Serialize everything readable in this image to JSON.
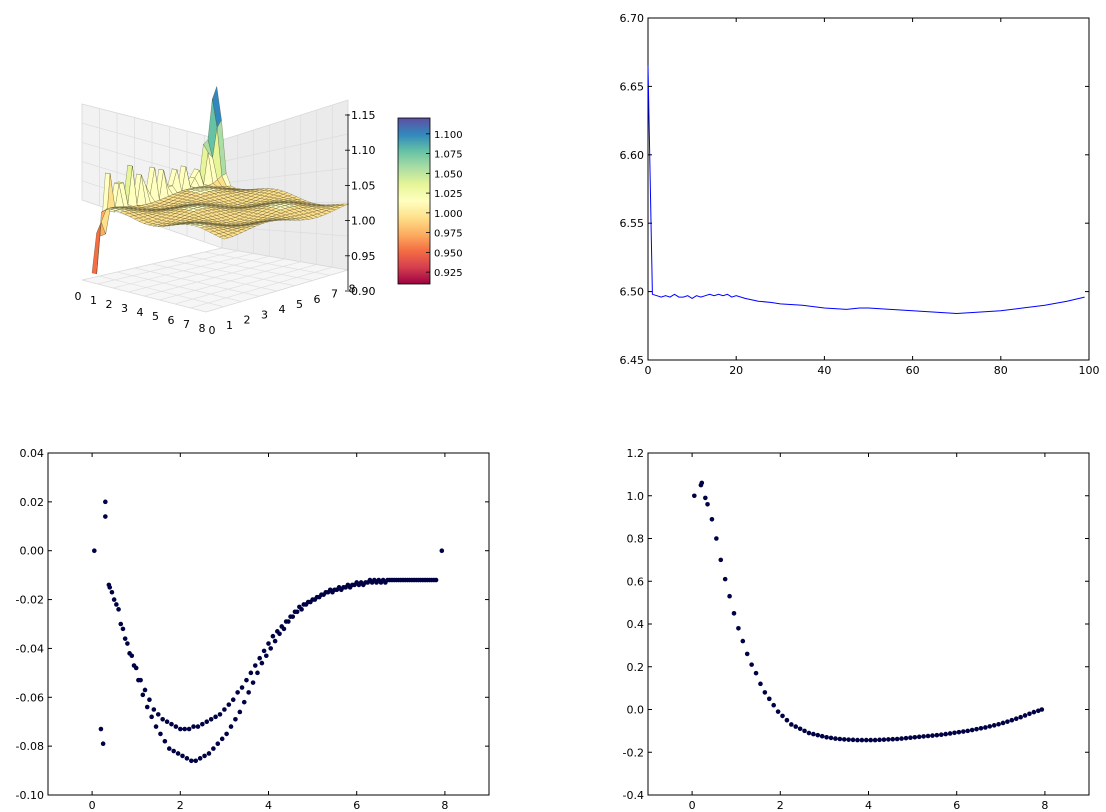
{
  "chart_data": [
    {
      "type": "surface3d",
      "description_of_surface": "",
      "x_ticks": [
        "0",
        "1",
        "2",
        "3",
        "4",
        "5",
        "6",
        "7",
        "8"
      ],
      "y_ticks": [
        "0",
        "1",
        "2",
        "3",
        "4",
        "5",
        "6",
        "7",
        "8"
      ],
      "z_ticks": [
        "0.90",
        "0.95",
        "1.00",
        "1.05",
        "1.10",
        "1.15"
      ],
      "xlim": [
        0,
        8
      ],
      "ylim": [
        0,
        8
      ],
      "zlim": [
        0.9,
        1.15
      ],
      "colormap": "Spectral",
      "colorbar": {
        "range": [
          0.91,
          1.12
        ],
        "ticks": [
          "0.925",
          "0.950",
          "0.975",
          "1.000",
          "1.025",
          "1.050",
          "1.075",
          "1.100"
        ],
        "colors": [
          "#9e0142",
          "#d53e4f",
          "#f46d43",
          "#fdae61",
          "#fee08b",
          "#ffffbf",
          "#e6f598",
          "#abdda4",
          "#66c2a5",
          "#3288bd",
          "#5e4fa2"
        ]
      },
      "grid": true
    },
    {
      "type": "line",
      "xlim": [
        0,
        100
      ],
      "ylim": [
        6.45,
        6.7
      ],
      "x_ticks": [
        "0",
        "20",
        "40",
        "60",
        "80",
        "100"
      ],
      "y_ticks": [
        "6.45",
        "6.50",
        "6.55",
        "6.60",
        "6.65",
        "6.70"
      ],
      "color": "#0000ff",
      "x": [
        0,
        1,
        2,
        3,
        4,
        5,
        6,
        7,
        8,
        9,
        10,
        11,
        12,
        13,
        14,
        15,
        16,
        17,
        18,
        19,
        20,
        22,
        25,
        28,
        30,
        35,
        40,
        45,
        48,
        50,
        55,
        60,
        65,
        70,
        75,
        80,
        85,
        90,
        95,
        99
      ],
      "y": [
        6.665,
        6.498,
        6.497,
        6.496,
        6.497,
        6.496,
        6.498,
        6.496,
        6.496,
        6.497,
        6.495,
        6.497,
        6.496,
        6.497,
        6.498,
        6.497,
        6.498,
        6.497,
        6.498,
        6.496,
        6.497,
        6.495,
        6.493,
        6.492,
        6.491,
        6.49,
        6.488,
        6.487,
        6.488,
        6.488,
        6.487,
        6.486,
        6.485,
        6.484,
        6.485,
        6.486,
        6.488,
        6.49,
        6.493,
        6.496
      ]
    },
    {
      "type": "scatter",
      "xlim": [
        -1,
        9
      ],
      "ylim": [
        -0.1,
        0.04
      ],
      "x_ticks": [
        "0",
        "2",
        "4",
        "6",
        "8"
      ],
      "y_ticks": [
        "-0.10",
        "-0.08",
        "-0.06",
        "-0.04",
        "-0.02",
        "0.00",
        "0.02",
        "0.04"
      ],
      "color": "#000044",
      "series": [
        {
          "x": [
            0.05,
            0.3,
            0.38,
            0.45,
            0.55,
            0.65,
            0.75,
            0.85,
            0.95,
            1.05,
            1.15,
            1.25,
            1.35,
            1.45,
            1.55,
            1.65,
            1.75,
            1.85,
            1.95,
            2.05,
            2.15,
            2.25,
            2.35,
            2.45,
            2.55,
            2.65,
            2.75,
            2.85,
            2.95,
            3.05,
            3.15,
            3.25,
            3.35,
            3.45,
            3.55,
            3.65,
            3.75,
            3.85,
            3.95,
            4.05,
            4.15,
            4.25,
            4.35,
            4.45,
            4.55,
            4.65,
            4.75,
            4.85,
            4.95,
            5.05,
            5.15,
            5.25,
            5.35,
            5.45,
            5.55,
            5.65,
            5.75,
            5.85,
            5.95,
            6.05,
            6.15,
            6.25,
            6.35,
            6.45,
            6.55,
            6.65,
            6.75,
            6.85,
            6.95,
            7.05,
            7.15,
            7.25,
            7.35,
            7.45,
            7.55,
            7.65,
            7.75,
            7.93
          ],
          "y": [
            0.0,
            0.014,
            -0.014,
            -0.017,
            -0.022,
            -0.03,
            -0.036,
            -0.042,
            -0.047,
            -0.053,
            -0.059,
            -0.064,
            -0.068,
            -0.072,
            -0.075,
            -0.078,
            -0.081,
            -0.082,
            -0.083,
            -0.084,
            -0.085,
            -0.086,
            -0.086,
            -0.085,
            -0.084,
            -0.083,
            -0.081,
            -0.079,
            -0.077,
            -0.075,
            -0.072,
            -0.069,
            -0.066,
            -0.062,
            -0.058,
            -0.054,
            -0.05,
            -0.046,
            -0.043,
            -0.04,
            -0.037,
            -0.034,
            -0.032,
            -0.029,
            -0.027,
            -0.025,
            -0.024,
            -0.022,
            -0.021,
            -0.02,
            -0.019,
            -0.018,
            -0.017,
            -0.017,
            -0.016,
            -0.016,
            -0.015,
            -0.015,
            -0.014,
            -0.014,
            -0.014,
            -0.013,
            -0.013,
            -0.013,
            -0.013,
            -0.013,
            -0.012,
            -0.012,
            -0.012,
            -0.012,
            -0.012,
            -0.012,
            -0.012,
            -0.012,
            -0.012,
            -0.012,
            -0.012,
            0.0
          ]
        },
        {
          "x": [
            0.2,
            0.25,
            0.3,
            0.4,
            0.5,
            0.6,
            0.7,
            0.8,
            0.9,
            1.0,
            1.1,
            1.2,
            1.3,
            1.4,
            1.5,
            1.6,
            1.7,
            1.8,
            1.9,
            2.0,
            2.1,
            2.2,
            2.3,
            2.4,
            2.5,
            2.6,
            2.7,
            2.8,
            2.9,
            3.0,
            3.1,
            3.2,
            3.3,
            3.4,
            3.5,
            3.6,
            3.7,
            3.8,
            3.9,
            4.0,
            4.1,
            4.2,
            4.3,
            4.4,
            4.5,
            4.6,
            4.7,
            4.8,
            4.9,
            5.0,
            5.1,
            5.2,
            5.3,
            5.4,
            5.5,
            5.6,
            5.7,
            5.8,
            5.9,
            6.0,
            6.1,
            6.2,
            6.3,
            6.4,
            6.5,
            6.6,
            6.7,
            6.8,
            6.9,
            7.0,
            7.1,
            7.2,
            7.3,
            7.4,
            7.5,
            7.6,
            7.7,
            7.8
          ],
          "y": [
            -0.073,
            -0.079,
            0.02,
            -0.015,
            -0.02,
            -0.024,
            -0.032,
            -0.038,
            -0.043,
            -0.048,
            -0.053,
            -0.057,
            -0.061,
            -0.065,
            -0.067,
            -0.069,
            -0.07,
            -0.071,
            -0.072,
            -0.073,
            -0.073,
            -0.073,
            -0.072,
            -0.072,
            -0.071,
            -0.07,
            -0.069,
            -0.068,
            -0.067,
            -0.065,
            -0.063,
            -0.061,
            -0.058,
            -0.056,
            -0.053,
            -0.05,
            -0.047,
            -0.044,
            -0.041,
            -0.038,
            -0.035,
            -0.033,
            -0.031,
            -0.029,
            -0.027,
            -0.025,
            -0.023,
            -0.022,
            -0.021,
            -0.02,
            -0.019,
            -0.018,
            -0.017,
            -0.016,
            -0.016,
            -0.015,
            -0.015,
            -0.014,
            -0.014,
            -0.013,
            -0.013,
            -0.013,
            -0.012,
            -0.012,
            -0.012,
            -0.012,
            -0.012,
            -0.012,
            -0.012,
            -0.012,
            -0.012,
            -0.012,
            -0.012,
            -0.012,
            -0.012,
            -0.012,
            -0.012,
            -0.012
          ]
        }
      ]
    },
    {
      "type": "scatter",
      "xlim": [
        -1,
        9
      ],
      "ylim": [
        -0.4,
        1.2
      ],
      "x_ticks": [
        "0",
        "2",
        "4",
        "6",
        "8"
      ],
      "y_ticks": [
        "-0.4",
        "-0.2",
        "0.0",
        "0.2",
        "0.4",
        "0.6",
        "0.8",
        "1.0",
        "1.2"
      ],
      "color": "#000044",
      "x": [
        0.05,
        0.2,
        0.22,
        0.3,
        0.35,
        0.45,
        0.55,
        0.65,
        0.75,
        0.85,
        0.95,
        1.05,
        1.15,
        1.25,
        1.35,
        1.45,
        1.55,
        1.65,
        1.75,
        1.85,
        1.95,
        2.05,
        2.15,
        2.25,
        2.35,
        2.45,
        2.55,
        2.65,
        2.75,
        2.85,
        2.95,
        3.05,
        3.15,
        3.25,
        3.35,
        3.45,
        3.55,
        3.65,
        3.75,
        3.85,
        3.95,
        4.05,
        4.15,
        4.25,
        4.35,
        4.45,
        4.55,
        4.65,
        4.75,
        4.85,
        4.95,
        5.05,
        5.15,
        5.25,
        5.35,
        5.45,
        5.55,
        5.65,
        5.75,
        5.85,
        5.95,
        6.05,
        6.15,
        6.25,
        6.35,
        6.45,
        6.55,
        6.65,
        6.75,
        6.85,
        6.95,
        7.05,
        7.15,
        7.25,
        7.35,
        7.45,
        7.55,
        7.65,
        7.75,
        7.85,
        7.93
      ],
      "y": [
        1.0,
        1.05,
        1.06,
        0.99,
        0.96,
        0.89,
        0.8,
        0.7,
        0.61,
        0.53,
        0.45,
        0.38,
        0.32,
        0.26,
        0.21,
        0.17,
        0.12,
        0.08,
        0.05,
        0.02,
        -0.01,
        -0.03,
        -0.05,
        -0.07,
        -0.08,
        -0.09,
        -0.1,
        -0.11,
        -0.115,
        -0.12,
        -0.125,
        -0.13,
        -0.133,
        -0.136,
        -0.138,
        -0.14,
        -0.141,
        -0.142,
        -0.143,
        -0.143,
        -0.143,
        -0.143,
        -0.143,
        -0.142,
        -0.141,
        -0.14,
        -0.139,
        -0.138,
        -0.136,
        -0.134,
        -0.132,
        -0.13,
        -0.128,
        -0.126,
        -0.124,
        -0.122,
        -0.12,
        -0.118,
        -0.115,
        -0.112,
        -0.109,
        -0.106,
        -0.103,
        -0.1,
        -0.096,
        -0.092,
        -0.088,
        -0.084,
        -0.079,
        -0.074,
        -0.069,
        -0.063,
        -0.057,
        -0.05,
        -0.043,
        -0.036,
        -0.028,
        -0.02,
        -0.012,
        -0.006,
        0.0
      ]
    }
  ]
}
